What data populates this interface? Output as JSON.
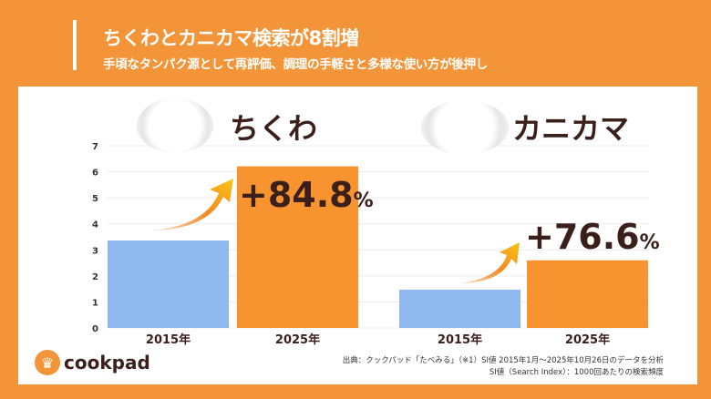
{
  "header": {
    "title": "ちくわとカニカマ検索が8割増",
    "subtitle": "手頃なタンパク源として再評価、調理の手軽さと多様な使い方が後押し"
  },
  "chart_data": {
    "type": "bar",
    "ylim": [
      0,
      7
    ],
    "yticks": [
      "0",
      "1",
      "2",
      "3",
      "4",
      "5",
      "6",
      "7"
    ],
    "grid": true,
    "groups": [
      {
        "name": "ちくわ",
        "categories": [
          "2015年",
          "2025年"
        ],
        "values": [
          3.36,
          6.21
        ],
        "change_label": "+84.8",
        "change_unit": "%"
      },
      {
        "name": "カニカマ",
        "categories": [
          "2015年",
          "2025年"
        ],
        "values": [
          1.47,
          2.6
        ],
        "change_label": "+76.6",
        "change_unit": "%"
      }
    ],
    "colors": {
      "2015": "#8fb8ee",
      "2025": "#f7942f"
    }
  },
  "footer": {
    "logo": "cookpad",
    "source_line1": "出典：クックパッド「たべみる」（※1）SI値 2015年1月～2025年10月26日のデータを分析",
    "source_line2": "SI値（Search Index）：1000回あたりの検索頻度"
  }
}
